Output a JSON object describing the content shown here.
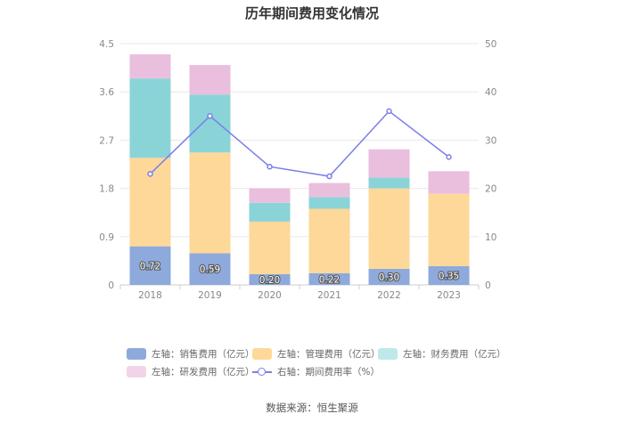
{
  "chart_data": {
    "type": "bar",
    "title": "历年期间费用变化情况",
    "categories": [
      "2018",
      "2019",
      "2020",
      "2021",
      "2022",
      "2023"
    ],
    "series": [
      {
        "name": "左轴：销售费用（亿元）",
        "values": [
          0.72,
          0.59,
          0.2,
          0.22,
          0.3,
          0.35
        ],
        "color": "#8eaadc",
        "labels": [
          "0.72",
          "0.59",
          "0.20",
          "0.22",
          "0.30",
          "0.35"
        ]
      },
      {
        "name": "左轴：管理费用（亿元）",
        "values": [
          1.65,
          1.88,
          0.98,
          1.2,
          1.5,
          1.35
        ],
        "color": "#fed899"
      },
      {
        "name": "左轴：财务费用（亿元）",
        "values": [
          1.48,
          1.08,
          0.35,
          0.22,
          0.2,
          0.0
        ],
        "color": "#8ad4d8"
      },
      {
        "name": "左轴：研发费用（亿元）",
        "values": [
          0.45,
          0.55,
          0.27,
          0.26,
          0.53,
          0.42
        ],
        "color": "#eabedd"
      }
    ],
    "line_series": {
      "name": "右轴：期间费用率（%）",
      "values": [
        23,
        35,
        24.5,
        22.5,
        36,
        26.5
      ],
      "color": "#7b7fe8"
    },
    "y_left": {
      "range": [
        0,
        4.5
      ],
      "ticks": [
        "0",
        "0.9",
        "1.8",
        "2.7",
        "3.6",
        "4.5"
      ]
    },
    "y_right": {
      "range": [
        0,
        50
      ],
      "ticks": [
        "0",
        "10",
        "20",
        "30",
        "40",
        "50"
      ]
    },
    "grid": true,
    "legend_position": "bottom"
  },
  "source": "数据来源：恒生聚源"
}
